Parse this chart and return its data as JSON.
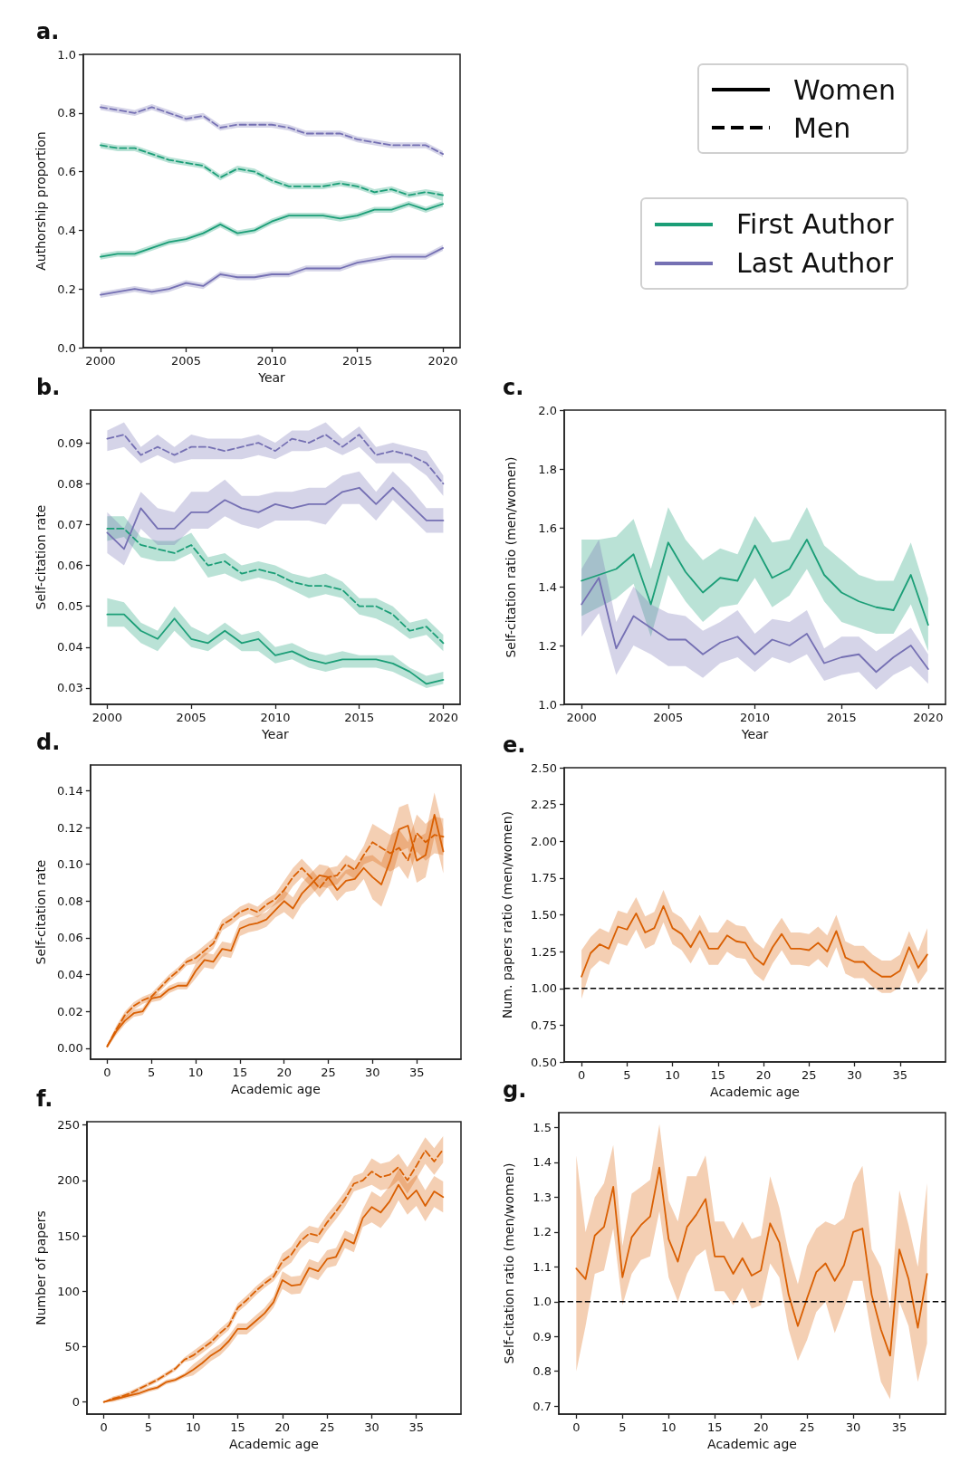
{
  "chart_data": [
    {
      "type": "line",
      "title": "a.",
      "xlabel": "Year",
      "ylabel": "Authorship proportion",
      "x": [
        2000,
        2001,
        2002,
        2003,
        2004,
        2005,
        2006,
        2007,
        2008,
        2009,
        2010,
        2011,
        2012,
        2013,
        2014,
        2015,
        2016,
        2017,
        2018,
        2019,
        2020
      ],
      "xlim": [
        1999,
        2021
      ],
      "xticks": [
        2000,
        2005,
        2010,
        2015,
        2020
      ],
      "ylim": [
        0,
        1
      ],
      "yticks": [
        {
          "value": 0,
          "label": "0.0"
        },
        0.2,
        0.4,
        0.6,
        0.8,
        {
          "value": 1,
          "label": "1.0"
        }
      ],
      "annotations": [
        "Women",
        "Men",
        "First Author",
        "Last Author"
      ],
      "series": [
        {
          "color": "#1b9e77",
          "line_style": "solid",
          "values": [
            0.31,
            0.32,
            0.32,
            0.34,
            0.36,
            0.37,
            0.39,
            0.42,
            0.39,
            0.4,
            0.43,
            0.45,
            0.45,
            0.45,
            0.44,
            0.45,
            0.47,
            0.47,
            0.49,
            0.47,
            0.49
          ],
          "lower": [
            0.3,
            0.31,
            0.31,
            0.33,
            0.35,
            0.36,
            0.38,
            0.41,
            0.38,
            0.39,
            0.42,
            0.44,
            0.44,
            0.44,
            0.43,
            0.44,
            0.46,
            0.46,
            0.48,
            0.46,
            0.48
          ],
          "upper": [
            0.32,
            0.33,
            0.33,
            0.35,
            0.37,
            0.38,
            0.4,
            0.43,
            0.4,
            0.41,
            0.44,
            0.46,
            0.46,
            0.46,
            0.45,
            0.46,
            0.48,
            0.48,
            0.5,
            0.48,
            0.5
          ]
        },
        {
          "color": "#1b9e77",
          "line_style": "dashed",
          "values": [
            0.69,
            0.68,
            0.68,
            0.66,
            0.64,
            0.63,
            0.62,
            0.58,
            0.61,
            0.6,
            0.57,
            0.55,
            0.55,
            0.55,
            0.56,
            0.55,
            0.53,
            0.54,
            0.52,
            0.53,
            0.52
          ],
          "lower": [
            0.68,
            0.67,
            0.67,
            0.65,
            0.63,
            0.62,
            0.61,
            0.57,
            0.6,
            0.59,
            0.56,
            0.54,
            0.54,
            0.54,
            0.55,
            0.54,
            0.52,
            0.53,
            0.51,
            0.52,
            0.5
          ],
          "upper": [
            0.7,
            0.69,
            0.69,
            0.67,
            0.65,
            0.64,
            0.63,
            0.59,
            0.62,
            0.61,
            0.58,
            0.56,
            0.56,
            0.56,
            0.57,
            0.56,
            0.54,
            0.55,
            0.53,
            0.54,
            0.53
          ]
        },
        {
          "color": "#7570b3",
          "line_style": "solid",
          "values": [
            0.18,
            0.19,
            0.2,
            0.19,
            0.2,
            0.22,
            0.21,
            0.25,
            0.24,
            0.24,
            0.25,
            0.25,
            0.27,
            0.27,
            0.27,
            0.29,
            0.3,
            0.31,
            0.31,
            0.31,
            0.34
          ],
          "lower": [
            0.17,
            0.18,
            0.19,
            0.18,
            0.19,
            0.21,
            0.2,
            0.24,
            0.23,
            0.23,
            0.24,
            0.24,
            0.26,
            0.26,
            0.26,
            0.28,
            0.29,
            0.3,
            0.3,
            0.3,
            0.33
          ],
          "upper": [
            0.19,
            0.2,
            0.21,
            0.2,
            0.21,
            0.23,
            0.22,
            0.26,
            0.25,
            0.25,
            0.26,
            0.26,
            0.28,
            0.28,
            0.28,
            0.3,
            0.31,
            0.32,
            0.32,
            0.32,
            0.35
          ]
        },
        {
          "color": "#7570b3",
          "line_style": "dashed",
          "values": [
            0.82,
            0.81,
            0.8,
            0.82,
            0.8,
            0.78,
            0.79,
            0.75,
            0.76,
            0.76,
            0.76,
            0.75,
            0.73,
            0.73,
            0.73,
            0.71,
            0.7,
            0.69,
            0.69,
            0.69,
            0.66
          ],
          "lower": [
            0.81,
            0.8,
            0.79,
            0.81,
            0.79,
            0.77,
            0.78,
            0.74,
            0.75,
            0.75,
            0.75,
            0.74,
            0.72,
            0.72,
            0.72,
            0.7,
            0.69,
            0.68,
            0.68,
            0.68,
            0.65
          ],
          "upper": [
            0.83,
            0.82,
            0.81,
            0.83,
            0.81,
            0.79,
            0.8,
            0.76,
            0.77,
            0.77,
            0.77,
            0.76,
            0.74,
            0.74,
            0.74,
            0.72,
            0.71,
            0.7,
            0.7,
            0.7,
            0.67
          ]
        }
      ]
    },
    {
      "type": "line",
      "title": "b.",
      "xlabel": "Year",
      "ylabel": "Self-citation rate",
      "x": [
        2000,
        2001,
        2002,
        2003,
        2004,
        2005,
        2006,
        2007,
        2008,
        2009,
        2010,
        2011,
        2012,
        2013,
        2014,
        2015,
        2016,
        2017,
        2018,
        2019,
        2020
      ],
      "xlim": [
        1999,
        2021
      ],
      "xticks": [
        2000,
        2005,
        2010,
        2015,
        2020
      ],
      "ylim": [
        0.026,
        0.098
      ],
      "yticks": [
        0.03,
        0.04,
        0.05,
        0.06,
        0.07,
        0.08,
        0.09
      ],
      "series": [
        {
          "color": "#1b9e77",
          "line_style": "solid",
          "values": [
            0.048,
            0.048,
            0.044,
            0.042,
            0.047,
            0.042,
            0.041,
            0.044,
            0.041,
            0.042,
            0.038,
            0.039,
            0.037,
            0.036,
            0.037,
            0.037,
            0.037,
            0.036,
            0.034,
            0.031,
            0.032
          ],
          "lower": [
            0.045,
            0.045,
            0.041,
            0.039,
            0.044,
            0.04,
            0.039,
            0.042,
            0.039,
            0.039,
            0.036,
            0.037,
            0.035,
            0.034,
            0.035,
            0.035,
            0.035,
            0.034,
            0.032,
            0.03,
            0.031
          ],
          "upper": [
            0.052,
            0.051,
            0.046,
            0.044,
            0.05,
            0.045,
            0.043,
            0.046,
            0.043,
            0.044,
            0.04,
            0.041,
            0.039,
            0.038,
            0.039,
            0.038,
            0.038,
            0.038,
            0.035,
            0.033,
            0.034
          ]
        },
        {
          "color": "#1b9e77",
          "line_style": "dashed",
          "values": [
            0.069,
            0.069,
            0.065,
            0.064,
            0.063,
            0.065,
            0.06,
            0.061,
            0.058,
            0.059,
            0.058,
            0.056,
            0.055,
            0.055,
            0.054,
            0.05,
            0.05,
            0.048,
            0.044,
            0.045,
            0.041
          ],
          "lower": [
            0.066,
            0.067,
            0.062,
            0.061,
            0.061,
            0.063,
            0.057,
            0.058,
            0.056,
            0.057,
            0.056,
            0.054,
            0.052,
            0.053,
            0.052,
            0.048,
            0.047,
            0.045,
            0.042,
            0.043,
            0.039
          ],
          "upper": [
            0.072,
            0.072,
            0.067,
            0.066,
            0.066,
            0.068,
            0.062,
            0.063,
            0.06,
            0.061,
            0.06,
            0.058,
            0.057,
            0.058,
            0.056,
            0.052,
            0.052,
            0.05,
            0.046,
            0.047,
            0.043
          ]
        },
        {
          "color": "#7570b3",
          "line_style": "solid",
          "values": [
            0.068,
            0.064,
            0.074,
            0.069,
            0.069,
            0.073,
            0.073,
            0.076,
            0.074,
            0.073,
            0.075,
            0.074,
            0.075,
            0.075,
            0.078,
            0.079,
            0.075,
            0.079,
            0.075,
            0.071,
            0.071
          ],
          "lower": [
            0.063,
            0.06,
            0.069,
            0.065,
            0.065,
            0.069,
            0.069,
            0.072,
            0.07,
            0.069,
            0.071,
            0.071,
            0.071,
            0.07,
            0.075,
            0.075,
            0.071,
            0.076,
            0.072,
            0.068,
            0.068
          ],
          "upper": [
            0.073,
            0.069,
            0.078,
            0.074,
            0.073,
            0.078,
            0.078,
            0.081,
            0.077,
            0.077,
            0.078,
            0.078,
            0.079,
            0.079,
            0.082,
            0.083,
            0.078,
            0.083,
            0.079,
            0.074,
            0.074
          ]
        },
        {
          "color": "#7570b3",
          "line_style": "dashed",
          "values": [
            0.091,
            0.092,
            0.087,
            0.089,
            0.087,
            0.089,
            0.089,
            0.088,
            0.089,
            0.09,
            0.088,
            0.091,
            0.09,
            0.092,
            0.089,
            0.092,
            0.087,
            0.088,
            0.087,
            0.085,
            0.08
          ],
          "lower": [
            0.088,
            0.089,
            0.085,
            0.087,
            0.085,
            0.086,
            0.086,
            0.086,
            0.086,
            0.087,
            0.086,
            0.088,
            0.088,
            0.089,
            0.087,
            0.089,
            0.085,
            0.085,
            0.085,
            0.082,
            0.077
          ],
          "upper": [
            0.093,
            0.095,
            0.089,
            0.092,
            0.089,
            0.092,
            0.091,
            0.091,
            0.091,
            0.092,
            0.09,
            0.093,
            0.093,
            0.095,
            0.091,
            0.094,
            0.089,
            0.09,
            0.089,
            0.088,
            0.082
          ]
        }
      ]
    },
    {
      "type": "line",
      "title": "c.",
      "xlabel": "Year",
      "ylabel": "Self-citation ratio (men/women)",
      "x": [
        2000,
        2001,
        2002,
        2003,
        2004,
        2005,
        2006,
        2007,
        2008,
        2009,
        2010,
        2011,
        2012,
        2013,
        2014,
        2015,
        2016,
        2017,
        2018,
        2019,
        2020
      ],
      "xlim": [
        1999,
        2021
      ],
      "xticks": [
        2000,
        2005,
        2010,
        2015,
        2020
      ],
      "ylim": [
        1,
        2
      ],
      "yticks": [
        {
          "value": 1,
          "label": "1.0"
        },
        1.2,
        1.4,
        1.6,
        1.8,
        {
          "value": 2,
          "label": "2.0"
        }
      ],
      "series": [
        {
          "color": "#1b9e77",
          "line_style": "solid",
          "values": [
            1.42,
            1.44,
            1.46,
            1.51,
            1.34,
            1.55,
            1.45,
            1.38,
            1.43,
            1.42,
            1.54,
            1.43,
            1.46,
            1.56,
            1.44,
            1.38,
            1.35,
            1.33,
            1.32,
            1.44,
            1.27
          ],
          "lower": [
            1.3,
            1.33,
            1.36,
            1.41,
            1.23,
            1.44,
            1.35,
            1.28,
            1.33,
            1.34,
            1.43,
            1.33,
            1.37,
            1.46,
            1.35,
            1.28,
            1.26,
            1.24,
            1.24,
            1.34,
            1.18
          ],
          "upper": [
            1.56,
            1.56,
            1.57,
            1.63,
            1.46,
            1.67,
            1.56,
            1.49,
            1.53,
            1.51,
            1.64,
            1.55,
            1.56,
            1.67,
            1.54,
            1.49,
            1.44,
            1.42,
            1.42,
            1.55,
            1.36
          ]
        },
        {
          "color": "#7570b3",
          "line_style": "solid",
          "values": [
            1.34,
            1.43,
            1.19,
            1.3,
            1.26,
            1.22,
            1.22,
            1.17,
            1.21,
            1.23,
            1.17,
            1.22,
            1.2,
            1.24,
            1.14,
            1.16,
            1.17,
            1.11,
            1.16,
            1.2,
            1.12
          ],
          "lower": [
            1.23,
            1.31,
            1.1,
            1.2,
            1.17,
            1.13,
            1.13,
            1.09,
            1.14,
            1.16,
            1.11,
            1.16,
            1.14,
            1.17,
            1.08,
            1.1,
            1.11,
            1.05,
            1.1,
            1.13,
            1.07
          ],
          "upper": [
            1.46,
            1.56,
            1.28,
            1.4,
            1.34,
            1.31,
            1.3,
            1.25,
            1.28,
            1.32,
            1.24,
            1.29,
            1.28,
            1.32,
            1.19,
            1.23,
            1.23,
            1.18,
            1.22,
            1.26,
            1.17
          ]
        }
      ]
    },
    {
      "type": "line",
      "title": "d.",
      "xlabel": "Academic age",
      "ylabel": "Self-citation rate",
      "x": [
        0,
        1,
        2,
        3,
        4,
        5,
        6,
        7,
        8,
        9,
        10,
        11,
        12,
        13,
        14,
        15,
        16,
        17,
        18,
        19,
        20,
        21,
        22,
        23,
        24,
        25,
        26,
        27,
        28,
        29,
        30,
        31,
        32,
        33,
        34,
        35,
        36,
        37,
        38
      ],
      "xlim": [
        -1.9,
        40
      ],
      "xticks": [
        0,
        5,
        10,
        15,
        20,
        25,
        30,
        35
      ],
      "ylim": [
        -0.006,
        0.154
      ],
      "yticks": [
        {
          "value": 0,
          "label": "0.00"
        },
        {
          "value": 0.02,
          "label": "0.02"
        },
        {
          "value": 0.04,
          "label": "0.04"
        },
        {
          "value": 0.06,
          "label": "0.06"
        },
        {
          "value": 0.08,
          "label": "0.08"
        },
        {
          "value": 0.1,
          "label": "0.10"
        },
        {
          "value": 0.12,
          "label": "0.12"
        },
        {
          "value": 0.14,
          "label": "0.14"
        }
      ],
      "series": [
        {
          "color": "#d95f02",
          "line_style": "solid",
          "values": [
            0.001,
            0.009,
            0.015,
            0.019,
            0.02,
            0.027,
            0.028,
            0.032,
            0.034,
            0.034,
            0.042,
            0.048,
            0.047,
            0.054,
            0.053,
            0.065,
            0.067,
            0.068,
            0.07,
            0.075,
            0.08,
            0.076,
            0.084,
            0.089,
            0.094,
            0.093,
            0.086,
            0.091,
            0.092,
            0.098,
            0.093,
            0.089,
            0.102,
            0.119,
            0.121,
            0.102,
            0.105,
            0.127,
            0.107
          ],
          "lower": [
            0.0,
            0.007,
            0.013,
            0.017,
            0.018,
            0.025,
            0.026,
            0.03,
            0.032,
            0.032,
            0.038,
            0.044,
            0.043,
            0.05,
            0.049,
            0.061,
            0.063,
            0.064,
            0.066,
            0.071,
            0.074,
            0.07,
            0.078,
            0.083,
            0.088,
            0.087,
            0.08,
            0.085,
            0.086,
            0.092,
            0.081,
            0.077,
            0.09,
            0.107,
            0.109,
            0.09,
            0.093,
            0.115,
            0.095
          ],
          "upper": [
            0.002,
            0.011,
            0.017,
            0.021,
            0.022,
            0.029,
            0.03,
            0.034,
            0.036,
            0.036,
            0.046,
            0.052,
            0.051,
            0.058,
            0.057,
            0.069,
            0.071,
            0.072,
            0.074,
            0.079,
            0.086,
            0.082,
            0.09,
            0.095,
            0.1,
            0.099,
            0.092,
            0.097,
            0.098,
            0.104,
            0.105,
            0.101,
            0.114,
            0.131,
            0.133,
            0.114,
            0.117,
            0.139,
            0.119
          ]
        },
        {
          "color": "#d95f02",
          "line_style": "dashed",
          "values": [
            0.001,
            0.01,
            0.018,
            0.023,
            0.026,
            0.028,
            0.033,
            0.038,
            0.042,
            0.047,
            0.049,
            0.053,
            0.057,
            0.067,
            0.07,
            0.074,
            0.076,
            0.074,
            0.078,
            0.081,
            0.086,
            0.093,
            0.098,
            0.093,
            0.087,
            0.093,
            0.094,
            0.1,
            0.097,
            0.105,
            0.112,
            0.109,
            0.106,
            0.109,
            0.102,
            0.117,
            0.112,
            0.116,
            0.115
          ],
          "lower": [
            0.0,
            0.008,
            0.016,
            0.021,
            0.024,
            0.026,
            0.031,
            0.036,
            0.04,
            0.045,
            0.046,
            0.05,
            0.054,
            0.064,
            0.067,
            0.071,
            0.073,
            0.071,
            0.075,
            0.078,
            0.081,
            0.088,
            0.093,
            0.088,
            0.082,
            0.088,
            0.089,
            0.095,
            0.092,
            0.1,
            0.102,
            0.099,
            0.096,
            0.099,
            0.092,
            0.107,
            0.102,
            0.106,
            0.105
          ],
          "upper": [
            0.002,
            0.012,
            0.02,
            0.025,
            0.028,
            0.03,
            0.035,
            0.04,
            0.044,
            0.049,
            0.052,
            0.056,
            0.06,
            0.07,
            0.073,
            0.077,
            0.079,
            0.077,
            0.081,
            0.084,
            0.091,
            0.098,
            0.103,
            0.098,
            0.092,
            0.098,
            0.099,
            0.105,
            0.102,
            0.11,
            0.122,
            0.119,
            0.116,
            0.119,
            0.112,
            0.127,
            0.122,
            0.126,
            0.125
          ]
        }
      ]
    },
    {
      "type": "line",
      "title": "e.",
      "xlabel": "Academic age",
      "ylabel": "Num. papers ratio (men/women)",
      "x": [
        0,
        1,
        2,
        3,
        4,
        5,
        6,
        7,
        8,
        9,
        10,
        11,
        12,
        13,
        14,
        15,
        16,
        17,
        18,
        19,
        20,
        21,
        22,
        23,
        24,
        25,
        26,
        27,
        28,
        29,
        30,
        31,
        32,
        33,
        34,
        35,
        36,
        37,
        38
      ],
      "xlim": [
        -1.9,
        40
      ],
      "xticks": [
        0,
        5,
        10,
        15,
        20,
        25,
        30,
        35
      ],
      "ylim": [
        0.5,
        2.5
      ],
      "yticks": [
        {
          "value": 0.5,
          "label": "0.50"
        },
        0.75,
        {
          "value": 1,
          "label": "1.00"
        },
        1.25,
        {
          "value": 1.5,
          "label": "1.50"
        },
        1.75,
        {
          "value": 2,
          "label": "2.00"
        },
        2.25,
        {
          "value": 2.5,
          "label": "2.50"
        }
      ],
      "ref_lines": [
        {
          "axis": "y",
          "value": 1,
          "color": "#000000",
          "line_style": "dashed"
        }
      ],
      "series": [
        {
          "color": "#d95f02",
          "line_style": "solid",
          "values": [
            1.08,
            1.24,
            1.3,
            1.27,
            1.42,
            1.4,
            1.51,
            1.38,
            1.41,
            1.56,
            1.41,
            1.37,
            1.28,
            1.39,
            1.27,
            1.27,
            1.36,
            1.32,
            1.31,
            1.21,
            1.16,
            1.28,
            1.37,
            1.27,
            1.27,
            1.26,
            1.31,
            1.25,
            1.39,
            1.21,
            1.18,
            1.18,
            1.12,
            1.08,
            1.08,
            1.12,
            1.28,
            1.14,
            1.23
          ],
          "lower": [
            0.93,
            1.13,
            1.19,
            1.16,
            1.31,
            1.29,
            1.4,
            1.27,
            1.3,
            1.45,
            1.3,
            1.26,
            1.17,
            1.28,
            1.16,
            1.16,
            1.25,
            1.21,
            1.2,
            1.1,
            1.05,
            1.17,
            1.26,
            1.16,
            1.16,
            1.15,
            1.2,
            1.14,
            1.28,
            1.1,
            1.07,
            1.07,
            1.01,
            0.97,
            0.97,
            1.01,
            1.17,
            1.03,
            1.12
          ],
          "upper": [
            1.26,
            1.35,
            1.41,
            1.38,
            1.53,
            1.51,
            1.62,
            1.49,
            1.52,
            1.67,
            1.52,
            1.48,
            1.39,
            1.5,
            1.38,
            1.38,
            1.47,
            1.43,
            1.42,
            1.32,
            1.27,
            1.39,
            1.48,
            1.38,
            1.38,
            1.37,
            1.42,
            1.36,
            1.5,
            1.32,
            1.29,
            1.29,
            1.23,
            1.19,
            1.19,
            1.23,
            1.39,
            1.25,
            1.41
          ]
        }
      ]
    },
    {
      "type": "line",
      "title": "f.",
      "xlabel": "Academic age",
      "ylabel": "Number of papers",
      "x": [
        0,
        1,
        2,
        3,
        4,
        5,
        6,
        7,
        8,
        9,
        10,
        11,
        12,
        13,
        14,
        15,
        16,
        17,
        18,
        19,
        20,
        21,
        22,
        23,
        24,
        25,
        26,
        27,
        28,
        29,
        30,
        31,
        32,
        33,
        34,
        35,
        36,
        37,
        38
      ],
      "xlim": [
        -1.9,
        40
      ],
      "xticks": [
        0,
        5,
        10,
        15,
        20,
        25,
        30,
        35
      ],
      "ylim": [
        -11,
        253
      ],
      "yticks": [
        0,
        50,
        100,
        150,
        200,
        250
      ],
      "series": [
        {
          "color": "#d95f02",
          "line_style": "solid",
          "values": [
            0,
            2,
            4,
            6,
            8,
            11,
            13,
            18,
            20,
            24,
            29,
            35,
            42,
            47,
            55,
            66,
            66,
            73,
            80,
            90,
            110,
            105,
            106,
            121,
            118,
            129,
            131,
            147,
            143,
            166,
            176,
            171,
            181,
            196,
            183,
            191,
            177,
            190,
            185
          ],
          "lower": [
            0,
            0,
            2,
            4,
            6,
            9,
            11,
            16,
            18,
            22,
            24,
            30,
            37,
            42,
            50,
            61,
            61,
            68,
            75,
            85,
            102,
            97,
            98,
            113,
            110,
            121,
            123,
            139,
            135,
            158,
            162,
            157,
            167,
            182,
            169,
            177,
            163,
            176,
            171
          ],
          "upper": [
            0,
            4,
            6,
            8,
            10,
            13,
            15,
            20,
            22,
            26,
            34,
            40,
            47,
            52,
            60,
            71,
            71,
            78,
            85,
            95,
            118,
            113,
            114,
            129,
            126,
            137,
            139,
            155,
            151,
            174,
            190,
            185,
            195,
            210,
            197,
            205,
            191,
            204,
            199
          ]
        },
        {
          "color": "#d95f02",
          "line_style": "dashed",
          "values": [
            0,
            3,
            5,
            8,
            12,
            16,
            20,
            25,
            30,
            38,
            42,
            48,
            54,
            62,
            69,
            85,
            92,
            100,
            107,
            113,
            127,
            133,
            145,
            152,
            150,
            162,
            172,
            183,
            197,
            200,
            208,
            203,
            205,
            212,
            200,
            213,
            227,
            217,
            228
          ],
          "lower": [
            0,
            1,
            3,
            6,
            10,
            14,
            18,
            23,
            28,
            36,
            38,
            44,
            50,
            58,
            65,
            81,
            88,
            96,
            103,
            109,
            120,
            126,
            138,
            145,
            143,
            155,
            165,
            176,
            190,
            193,
            196,
            191,
            193,
            200,
            188,
            201,
            215,
            205,
            216
          ],
          "upper": [
            0,
            5,
            7,
            10,
            14,
            18,
            22,
            27,
            32,
            40,
            46,
            52,
            58,
            66,
            73,
            89,
            96,
            104,
            111,
            117,
            134,
            140,
            152,
            159,
            157,
            169,
            179,
            190,
            204,
            207,
            220,
            215,
            217,
            224,
            212,
            225,
            239,
            229,
            240
          ]
        }
      ]
    },
    {
      "type": "line",
      "title": "g.",
      "xlabel": "Academic age",
      "ylabel": "Self-citation ratio (men/women)",
      "x": [
        0,
        1,
        2,
        3,
        4,
        5,
        6,
        7,
        8,
        9,
        10,
        11,
        12,
        13,
        14,
        15,
        16,
        17,
        18,
        19,
        20,
        21,
        22,
        23,
        24,
        25,
        26,
        27,
        28,
        29,
        30,
        31,
        32,
        33,
        34,
        35,
        36,
        37,
        38
      ],
      "xlim": [
        -1.9,
        40
      ],
      "xticks": [
        0,
        5,
        10,
        15,
        20,
        25,
        30,
        35
      ],
      "ylim": [
        0.677,
        1.543
      ],
      "yticks": [
        0.7,
        0.8,
        0.9,
        {
          "value": 1,
          "label": "1.0"
        },
        1.1,
        1.2,
        1.3,
        1.4,
        1.5
      ],
      "ref_lines": [
        {
          "axis": "y",
          "value": 1,
          "color": "#000000",
          "line_style": "dashed"
        }
      ],
      "series": [
        {
          "color": "#d95f02",
          "line_style": "solid",
          "values": [
            1.095,
            1.065,
            1.19,
            1.215,
            1.33,
            1.07,
            1.185,
            1.22,
            1.245,
            1.385,
            1.18,
            1.115,
            1.215,
            1.25,
            1.295,
            1.13,
            1.13,
            1.08,
            1.125,
            1.075,
            1.09,
            1.225,
            1.17,
            1.02,
            0.93,
            1.01,
            1.085,
            1.11,
            1.06,
            1.105,
            1.2,
            1.21,
            1.02,
            0.92,
            0.845,
            1.15,
            1.065,
            0.925,
            1.08
          ],
          "lower": [
            0.8,
            0.93,
            1.08,
            1.09,
            1.21,
            0.99,
            1.08,
            1.12,
            1.13,
            1.26,
            1.07,
            1.0,
            1.08,
            1.13,
            1.15,
            1.03,
            1.03,
            0.99,
            1.04,
            0.98,
            0.99,
            1.11,
            1.07,
            0.92,
            0.83,
            0.89,
            0.97,
            1.0,
            0.91,
            0.98,
            1.06,
            1.06,
            0.9,
            0.77,
            0.72,
            1.0,
            0.93,
            0.77,
            0.88
          ],
          "upper": [
            1.42,
            1.2,
            1.3,
            1.34,
            1.45,
            1.16,
            1.31,
            1.33,
            1.35,
            1.51,
            1.29,
            1.23,
            1.36,
            1.36,
            1.42,
            1.23,
            1.23,
            1.18,
            1.23,
            1.18,
            1.19,
            1.36,
            1.27,
            1.14,
            1.05,
            1.16,
            1.21,
            1.23,
            1.22,
            1.24,
            1.34,
            1.39,
            1.15,
            1.1,
            0.98,
            1.32,
            1.22,
            1.1,
            1.34
          ]
        }
      ]
    }
  ]
}
